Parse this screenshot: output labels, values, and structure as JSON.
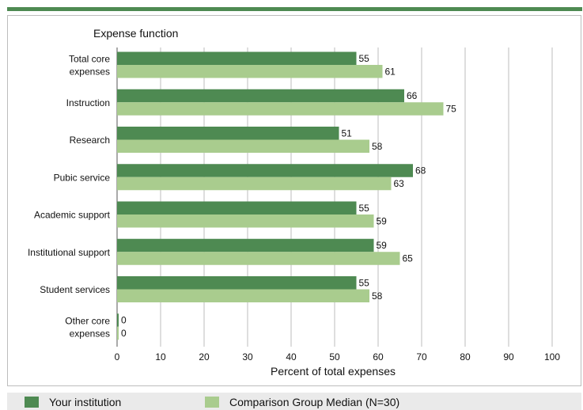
{
  "chart_data": {
    "type": "bar",
    "orientation": "horizontal",
    "title": "",
    "ylabel": "Expense function",
    "xlabel": "Percent of total expenses",
    "xlim": [
      0,
      100
    ],
    "xticks": [
      "0",
      "10",
      "20",
      "30",
      "40",
      "50",
      "60",
      "70",
      "80",
      "90",
      "100"
    ],
    "grid": "vertical",
    "categories": [
      "Total core expenses",
      "Instruction",
      "Research",
      "Pubic service",
      "Academic support",
      "Institutional support",
      "Student services",
      "Other core expenses"
    ],
    "category_lines": [
      [
        "Total core",
        "expenses"
      ],
      [
        "Instruction"
      ],
      [
        "Research"
      ],
      [
        "Pubic service"
      ],
      [
        "Academic support"
      ],
      [
        "Institutional support"
      ],
      [
        "Student services"
      ],
      [
        "Other core",
        "expenses"
      ]
    ],
    "series": [
      {
        "name": "Your institution",
        "color": "#4e8a52",
        "values": [
          55,
          66,
          51,
          68,
          55,
          59,
          55,
          0
        ]
      },
      {
        "name": "Comparison Group Median (N=30)",
        "color": "#a9cc8e",
        "values": [
          61,
          75,
          58,
          63,
          59,
          65,
          58,
          0
        ]
      }
    ],
    "legend_position": "bottom",
    "data_labels": true
  },
  "colors": {
    "accent": "#4e8a52",
    "grid": "#bdbdbd",
    "legend_background": "#eaeaea"
  }
}
